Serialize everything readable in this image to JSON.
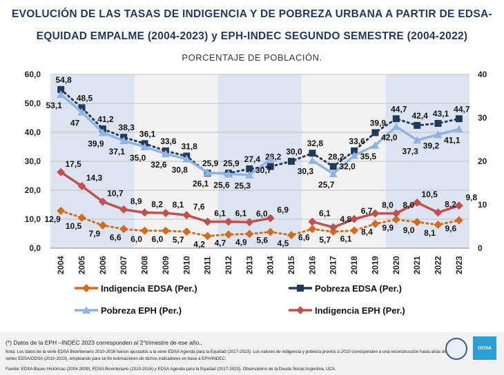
{
  "chart_data": {
    "type": "line",
    "title": "EVOLUCIÓN DE LAS TASAS DE INDIGENCIA Y DE POBREZA URBANA A PARTIR DE EDSA-",
    "title_line2": "EQUIDAD EMPALME (2004-2023) y EPH-INDEC SEGUNDO SEMESTRE (2004-2022)",
    "subtitle": "PORCENTAJE DE POBLACIÓN.",
    "categories": [
      "2004",
      "2005",
      "2006",
      "2007",
      "2008",
      "2009",
      "2010",
      "2011",
      "2012",
      "2013",
      "2014",
      "2015",
      "2016",
      "2017",
      "2018",
      "2019",
      "2020",
      "2021",
      "2022",
      "2023"
    ],
    "y_left": {
      "range": [
        0,
        60
      ],
      "ticks": [
        "0,0",
        "10,0",
        "20,0",
        "30,0",
        "40,0",
        "50,0",
        "60,0"
      ]
    },
    "y_right": {
      "range": [
        0,
        40
      ],
      "ticks": [
        "0",
        "10",
        "20",
        "30",
        "40"
      ]
    },
    "grid": true,
    "legend_placement": "bottom",
    "series": [
      {
        "name": "Indigencia EDSA (Per.)",
        "axis": "left",
        "color": "#d46a1a",
        "dash": true,
        "marker": "diamond",
        "values": [
          12.9,
          10.5,
          7.9,
          6.6,
          6.0,
          6.0,
          5.7,
          4.2,
          4.7,
          4.9,
          5.6,
          4.5,
          6.6,
          5.7,
          6.1,
          8.4,
          9.9,
          9.0,
          8.1,
          9.6
        ],
        "labels": [
          "12,9",
          "10,5",
          "7,9",
          "6,6",
          "6,0",
          "6,0",
          "5,7",
          "4,2",
          "4,7",
          "4,9",
          "5,6",
          "4,5",
          "6,6",
          "5,7",
          "6,1",
          "8,4",
          "9,9",
          "9,0",
          "8,1",
          "9,6"
        ]
      },
      {
        "name": "Pobreza EDSA (Per.)",
        "axis": "left",
        "color": "#1f3a5c",
        "dash": true,
        "marker": "square",
        "values": [
          54.8,
          48.5,
          41.2,
          38.3,
          36.1,
          33.6,
          31.8,
          25.9,
          25.9,
          27.4,
          28.2,
          30.0,
          32.8,
          28.2,
          33.6,
          39.9,
          44.7,
          42.4,
          43.1,
          44.7
        ],
        "labels": [
          "54,8",
          "48,5",
          "41,2",
          "38,3",
          "36,1",
          "33,6",
          "31,8",
          "25,9",
          "25,9",
          "27,4",
          "28,2",
          "30,0",
          "32,8",
          "28,2",
          "33,6",
          "39,9",
          "44,7",
          "42,4",
          "43,1",
          "44,7"
        ]
      },
      {
        "name": "Pobreza EPH (Per.)",
        "axis": "left",
        "color": "#8eb4e3",
        "marker": "triangle",
        "values": [
          53.1,
          47,
          39.9,
          37.1,
          35.0,
          32.6,
          30.8,
          26.1,
          25.6,
          25.3,
          30.7,
          null,
          30.3,
          25.7,
          32.0,
          35.5,
          42.0,
          37.3,
          39.2,
          41.1
        ],
        "labels": [
          "53,1",
          "47",
          "39,9",
          "37,1",
          "35,0",
          "32,6",
          "30,8",
          "26,1",
          "25,6",
          "25,3",
          "30,7",
          "",
          "30,3",
          "25,7",
          "32,0",
          "35,5",
          "42,0",
          "37,3",
          "39,2",
          "41,1"
        ]
      },
      {
        "name": "Indigencia EPH (Per.)",
        "axis": "right",
        "color": "#c0504d",
        "marker": "diamond",
        "values": [
          17.5,
          14.3,
          10.7,
          8.9,
          8.2,
          8.1,
          7.6,
          6.1,
          6.1,
          6.0,
          6.9,
          null,
          6.1,
          4.8,
          6.7,
          8.0,
          8.0,
          10.5,
          8.2,
          9.8
        ],
        "labels": [
          "17,5",
          "14,3",
          "10,7",
          "8,9",
          "8,2",
          "8,1",
          "7,6",
          "6,1",
          "6,1",
          "6,0",
          "6,9",
          "",
          "6,1",
          "4,8",
          "6,7",
          "8,0",
          "8,0",
          "10,5",
          "8,2",
          "9,8"
        ]
      }
    ],
    "band_colors": [
      "#dbe4f0",
      "#f2f2f2"
    ]
  },
  "footer": {
    "note1": "(*) Datos de la EPH –INDEC 2023 corresponden al 2°trimestre de ese año..",
    "note2": "Nota: Los datos de la serie EDSA Bicentenario 2010-2016 fueron ajustados a la serie EDSA Agenda para la Equidad (2017-2023). Los valores de indigencia y pobreza previos a 2010 corresponden a una reconstrucción hacia atrás de las series EDSA/ODSA (2010-2023), empleando para tal fin estimaciones de dichos indicadores en base a EPH/INDEC.",
    "source": "Fuente: EDSA Bases Históricas (2004-2009), EDSA Bicentenario (2010-2016) y EDSA Agenda para la Equidad (2017-2023), Observatorio de la Deuda Social Argentina, UCA.",
    "logo_text": "ODSA"
  }
}
